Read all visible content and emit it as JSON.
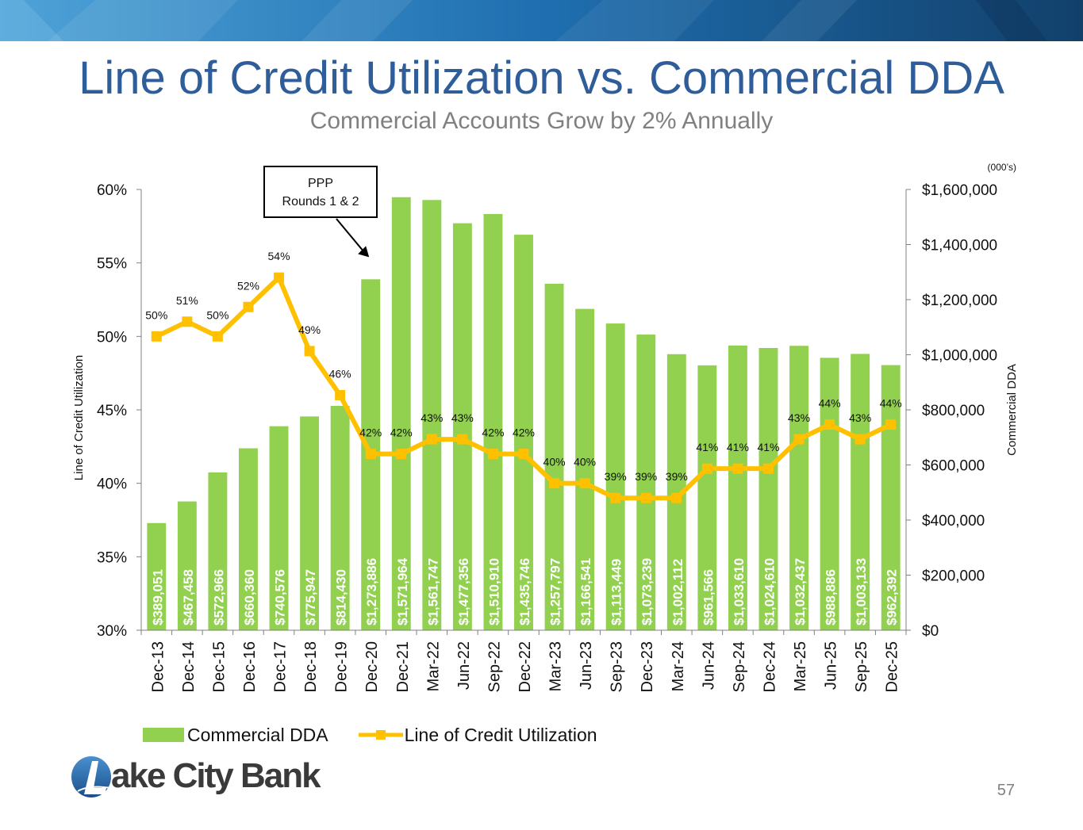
{
  "header": {
    "title": "Line of Credit Utilization vs. Commercial DDA",
    "subtitle": "Commercial Accounts Grow by 2% Annually"
  },
  "colors": {
    "bar": "#92d050",
    "line": "#ffc000",
    "title": "#2e5d99",
    "subtitle": "#808080"
  },
  "chart_data": {
    "type": "bar+line",
    "categories": [
      "Dec-13",
      "Dec-14",
      "Dec-15",
      "Dec-16",
      "Dec-17",
      "Dec-18",
      "Dec-19",
      "Dec-20",
      "Dec-21",
      "Mar-22",
      "Jun-22",
      "Sep-22",
      "Dec-22",
      "Mar-23",
      "Jun-23",
      "Sep-23",
      "Dec-23",
      "Mar-24",
      "Jun-24",
      "Sep-24",
      "Dec-24",
      "Mar-25",
      "Jun-25",
      "Sep-25",
      "Dec-25"
    ],
    "series": [
      {
        "name": "Commercial DDA",
        "axis": "right",
        "values": [
          389051,
          467458,
          572966,
          660360,
          740576,
          775947,
          814430,
          1273886,
          1571964,
          1561747,
          1477356,
          1510910,
          1435746,
          1257797,
          1166541,
          1113449,
          1073239,
          1002112,
          961566,
          1033610,
          1024610,
          1032437,
          988886,
          1003133,
          962392
        ],
        "labels": [
          "$389,051",
          "$467,458",
          "$572,966",
          "$660,360",
          "$740,576",
          "$775,947",
          "$814,430",
          "$1,273,886",
          "$1,571,964",
          "$1,561,747",
          "$1,477,356",
          "$1,510,910",
          "$1,435,746",
          "$1,257,797",
          "$1,166,541",
          "$1,113,449",
          "$1,073,239",
          "$1,002,112",
          "$961,566",
          "$1,033,610",
          "$1,024,610",
          "$1,032,437",
          "$988,886",
          "$1,003,133",
          "$962,392"
        ]
      },
      {
        "name": "Line of Credit Utilization",
        "axis": "left",
        "values": [
          50,
          51,
          50,
          52,
          54,
          49,
          46,
          42,
          42,
          43,
          43,
          42,
          42,
          40,
          40,
          39,
          39,
          39,
          41,
          41,
          41,
          43,
          44,
          43,
          44
        ],
        "labels": [
          "50%",
          "51%",
          "50%",
          "52%",
          "54%",
          "49%",
          "46%",
          "42%",
          "42%",
          "43%",
          "43%",
          "42%",
          "42%",
          "40%",
          "40%",
          "39%",
          "39%",
          "39%",
          "41%",
          "41%",
          "41%",
          "43%",
          "44%",
          "43%",
          "44%"
        ]
      }
    ],
    "y_left": {
      "label": "Line of Credit Utilization",
      "lim": [
        30,
        60
      ],
      "ticks": [
        "30%",
        "35%",
        "40%",
        "45%",
        "50%",
        "55%",
        "60%"
      ]
    },
    "y_right": {
      "label": "Commercial DDA",
      "unit_note": "(000’s)",
      "lim": [
        0,
        1600000
      ],
      "ticks": [
        "$0",
        "$200,000",
        "$400,000",
        "$600,000",
        "$800,000",
        "$1,000,000",
        "$1,200,000",
        "$1,400,000",
        "$1,600,000"
      ]
    },
    "annotation": {
      "lines": [
        "PPP",
        "Rounds 1 & 2"
      ],
      "points_to": "Dec-20"
    },
    "legend": [
      "Commercial DDA",
      "Line of Credit Utilization"
    ],
    "grid": false
  },
  "footer": {
    "logo_text": "ake City Bank",
    "page_number": "57"
  }
}
